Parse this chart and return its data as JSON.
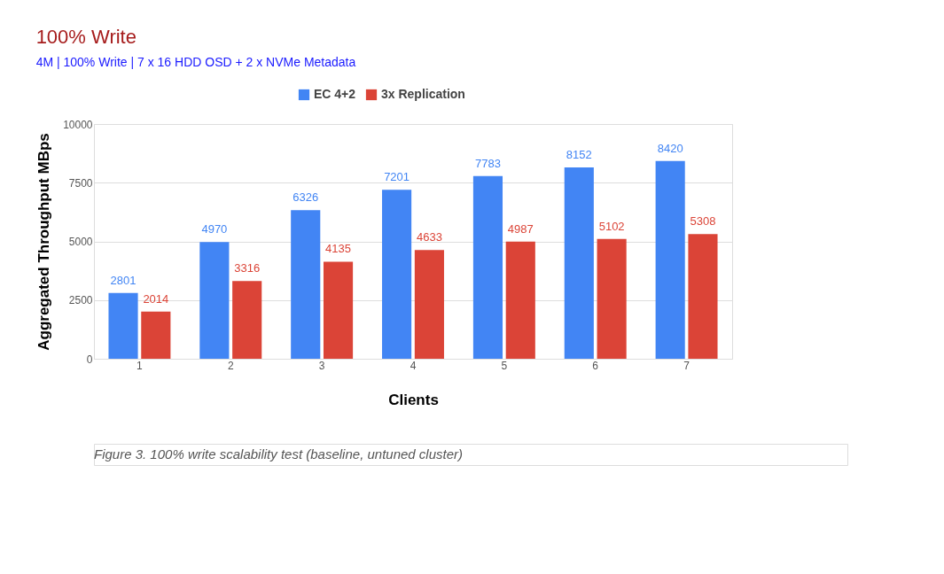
{
  "chart_data": {
    "type": "bar",
    "title": "100% Write",
    "subtitle": "4M | 100% Write | 7 x 16 HDD OSD + 2 x NVMe Metadata",
    "xlabel": "Clients",
    "ylabel": "Aggregated Throughput MBps",
    "categories": [
      "1",
      "2",
      "3",
      "4",
      "5",
      "6",
      "7"
    ],
    "series": [
      {
        "name": "EC 4+2",
        "color": "#4285f4",
        "values": [
          2801,
          4970,
          6326,
          7201,
          7783,
          8152,
          8420
        ]
      },
      {
        "name": "3x Replication",
        "color": "#db4437",
        "values": [
          2014,
          3316,
          4135,
          4633,
          4987,
          5102,
          5308
        ]
      }
    ],
    "ylim": [
      0,
      10000
    ],
    "yticks": [
      0,
      2500,
      5000,
      7500,
      10000
    ],
    "grid": "y",
    "legend": "top",
    "data_labels": true,
    "annotations": [
      "Figure 3. 100% write scalability test (baseline, untuned cluster)"
    ]
  }
}
